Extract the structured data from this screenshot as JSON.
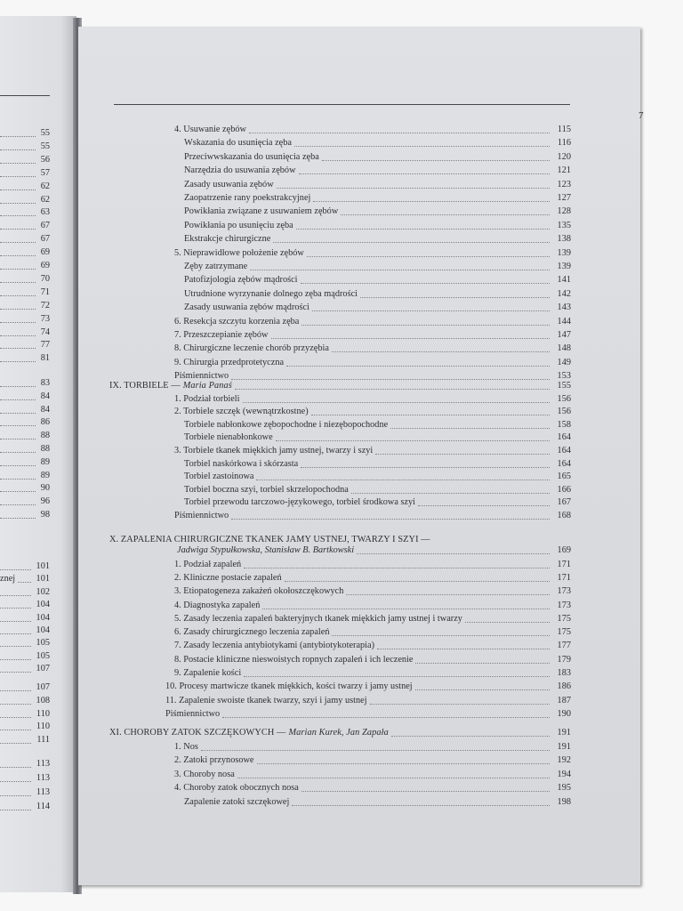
{
  "right_page": {
    "page_number": "7",
    "sections": [
      {
        "entries": [
          {
            "level": 1,
            "text": "4. Usuwanie zębów",
            "page": "115"
          },
          {
            "level": 2,
            "text": "Wskazania do usunięcia zęba",
            "page": "116"
          },
          {
            "level": 2,
            "text": "Przeciwwskazania do usunięcia zęba",
            "page": "120"
          },
          {
            "level": 2,
            "text": "Narzędzia do usuwania zębów",
            "page": "121"
          },
          {
            "level": 2,
            "text": "Zasady usuwania zębów",
            "page": "123"
          },
          {
            "level": 2,
            "text": "Zaopatrzenie rany poekstrakcyjnej",
            "page": "127"
          },
          {
            "level": 2,
            "text": "Powikłania związane z usuwaniem zębów",
            "page": "128"
          },
          {
            "level": 2,
            "text": "Powikłania po usunięciu zęba",
            "page": "135"
          },
          {
            "level": 2,
            "text": "Ekstrakcje chirurgiczne",
            "page": "138"
          },
          {
            "level": 1,
            "text": "5. Nieprawidłowe położenie zębów",
            "page": "139"
          },
          {
            "level": 2,
            "text": "Zęby zatrzymane",
            "page": "139"
          },
          {
            "level": 2,
            "text": "Patofizjologia zębów mądrości",
            "page": "141"
          },
          {
            "level": 2,
            "text": "Utrudnione wyrzynanie dolnego zęba mądrości",
            "page": "142"
          },
          {
            "level": 2,
            "text": "Zasady usuwania zębów mądrości",
            "page": "143"
          },
          {
            "level": 1,
            "text": "6. Resekcja szczytu korzenia zęba",
            "page": "144"
          },
          {
            "level": 1,
            "text": "7. Przeszczepianie zębów",
            "page": "147"
          },
          {
            "level": 1,
            "text": "8. Chirurgiczne leczenie chorób przyzębia",
            "page": "148"
          },
          {
            "level": 1,
            "text": "9. Chirurgia przedprotetyczna",
            "page": "149"
          },
          {
            "level": 1,
            "text": "Piśmiennictwo",
            "page": "153"
          }
        ]
      },
      {
        "entries": [
          {
            "level": 0,
            "text": "IX. TORBIELE — ",
            "author": "Maria Panaś",
            "page": "155"
          },
          {
            "level": 1,
            "text": "1. Podział torbieli",
            "page": "156"
          },
          {
            "level": 1,
            "text": "2. Torbiele szczęk (wewnątrzkostne)",
            "page": "156"
          },
          {
            "level": 2,
            "text": "Torbiele nabłonkowe zębopochodne i niezębopochodne",
            "page": "158"
          },
          {
            "level": 2,
            "text": "Torbiele nienabłonkowe",
            "page": "164"
          },
          {
            "level": 1,
            "text": "3. Torbiele tkanek miękkich jamy ustnej, twarzy i szyi",
            "page": "164"
          },
          {
            "level": 2,
            "text": "Torbiel naskórkowa i skórzasta",
            "page": "164"
          },
          {
            "level": 2,
            "text": "Torbiel zastoinowa",
            "page": "165"
          },
          {
            "level": 2,
            "text": "Torbiel boczna szyi, torbiel skrzelopochodna",
            "page": "166"
          },
          {
            "level": 2,
            "text": "Torbiel przewodu tarczowo-językowego, torbiel środkowa szyi",
            "page": "167"
          },
          {
            "level": 1,
            "text": "Piśmiennictwo",
            "page": "168"
          }
        ]
      },
      {
        "entries": [
          {
            "level": 0,
            "text": "X.  ZAPALENIA CHIRURGICZNE TKANEK JAMY USTNEJ, TWARZY I SZYI —",
            "page": ""
          },
          {
            "level": 1,
            "text": "",
            "author": "Jadwiga Stypułkowska, Stanisław B. Bartkowski",
            "page": "169"
          },
          {
            "level": 1,
            "text": "1. Podział zapaleń",
            "page": "171"
          },
          {
            "level": 1,
            "text": "2. Kliniczne postacie zapaleń",
            "page": "171"
          },
          {
            "level": 1,
            "text": "3. Etiopatogeneza zakażeń okołoszczękowych",
            "page": "173"
          },
          {
            "level": 1,
            "text": "4. Diagnostyka zapaleń",
            "page": "173"
          },
          {
            "level": 1,
            "text": "5. Zasady leczenia zapaleń bakteryjnych tkanek miękkich jamy ustnej i twarzy",
            "page": "175"
          },
          {
            "level": 1,
            "text": "6. Zasady chirurgicznego leczenia zapaleń",
            "page": "175"
          },
          {
            "level": 1,
            "text": "7. Zasady leczenia antybiotykami (antybiotykoterapia)",
            "page": "177"
          },
          {
            "level": 1,
            "text": "8. Postacie kliniczne nieswoistych ropnych zapaleń i ich leczenie",
            "page": "179"
          },
          {
            "level": 1,
            "text": "9. Zapalenie kości",
            "page": "183"
          },
          {
            "level": 3,
            "text": "10. Procesy martwicze tkanek miękkich, kości twarzy i jamy ustnej",
            "page": "186"
          },
          {
            "level": 3,
            "text": "11. Zapalenie swoiste tkanek twarzy, szyi i jamy ustnej",
            "page": "187"
          },
          {
            "level": 3,
            "text": "Piśmiennictwo",
            "page": "190"
          }
        ]
      },
      {
        "entries": [
          {
            "level": 0,
            "text": "XI. CHOROBY ZATOK SZCZĘKOWYCH — ",
            "author": "Marian Kurek, Jan Zapała",
            "page": "191"
          },
          {
            "level": 1,
            "text": "1. Nos",
            "page": "191"
          },
          {
            "level": 1,
            "text": "2. Zatoki przynosowe",
            "page": "192"
          },
          {
            "level": 1,
            "text": "3. Choroby nosa",
            "page": "194"
          },
          {
            "level": 1,
            "text": "4. Choroby zatok obocznych nosa",
            "page": "195"
          },
          {
            "level": 2,
            "text": "Zapalenie zatoki szczękowej",
            "page": "198"
          }
        ]
      }
    ]
  },
  "left_page": {
    "groups": [
      {
        "entries": [
          {
            "text": "",
            "page": "55"
          },
          {
            "text": "",
            "page": "55"
          },
          {
            "text": "",
            "page": "56"
          },
          {
            "text": "",
            "page": "57"
          },
          {
            "text": "",
            "page": "62"
          },
          {
            "text": "",
            "page": "62"
          },
          {
            "text": "",
            "page": "63"
          },
          {
            "text": "",
            "page": "67"
          },
          {
            "text": "",
            "page": "67"
          },
          {
            "text": "",
            "page": "69"
          },
          {
            "text": "",
            "page": "69"
          },
          {
            "text": "",
            "page": "70"
          },
          {
            "text": "",
            "page": "71"
          },
          {
            "text": "",
            "page": "72"
          },
          {
            "text": "",
            "page": "73"
          },
          {
            "text": "",
            "page": "74"
          },
          {
            "text": "",
            "page": "77"
          },
          {
            "text": "",
            "page": "81"
          }
        ]
      },
      {
        "entries": [
          {
            "text": "",
            "page": "83"
          },
          {
            "text": "",
            "page": "84"
          },
          {
            "text": "",
            "page": "84"
          },
          {
            "text": "",
            "page": "86"
          },
          {
            "text": "",
            "page": "88"
          },
          {
            "text": "",
            "page": "88"
          },
          {
            "text": "",
            "page": "89"
          },
          {
            "text": "",
            "page": "89"
          },
          {
            "text": "",
            "page": "90"
          },
          {
            "text": "",
            "page": "96"
          },
          {
            "text": "",
            "page": "98"
          }
        ]
      },
      {
        "entries": [
          {
            "text": "",
            "page": "101"
          },
          {
            "text": "znej",
            "page": "101"
          },
          {
            "text": "",
            "page": "102"
          },
          {
            "text": "",
            "page": "104"
          },
          {
            "text": "",
            "page": "104"
          },
          {
            "text": "",
            "page": "104"
          },
          {
            "text": "",
            "page": "105"
          },
          {
            "text": "",
            "page": "105"
          },
          {
            "text": "",
            "page": "107"
          }
        ]
      },
      {
        "entries": [
          {
            "text": "",
            "page": "107"
          },
          {
            "text": "",
            "page": "108"
          },
          {
            "text": "",
            "page": "110"
          },
          {
            "text": "",
            "page": "110"
          },
          {
            "text": "",
            "page": "111"
          }
        ]
      },
      {
        "entries": [
          {
            "text": "",
            "page": "113"
          },
          {
            "text": "",
            "page": "113"
          },
          {
            "text": "",
            "page": "113"
          },
          {
            "text": "",
            "page": "114"
          }
        ]
      }
    ]
  }
}
